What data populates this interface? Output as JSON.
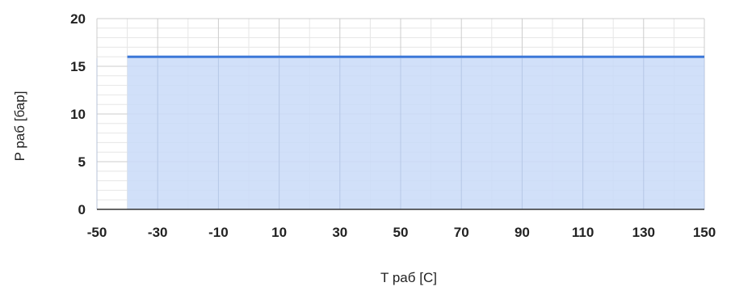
{
  "chart_data": {
    "type": "area",
    "title": "",
    "xlabel": "T раб [C]",
    "ylabel": "P раб [бар]",
    "xlim": [
      -50,
      150
    ],
    "ylim": [
      0,
      20
    ],
    "x_ticks": [
      -50,
      -30,
      -10,
      10,
      30,
      50,
      70,
      90,
      110,
      130,
      150
    ],
    "y_ticks": [
      0,
      5,
      10,
      15,
      20
    ],
    "grid": true,
    "legend": "none",
    "series": [
      {
        "x": [
          -40,
          150
        ],
        "y": [
          16,
          16
        ]
      }
    ],
    "colors": {
      "line": "#3c78d8",
      "fill": "#c9daf8",
      "grid_major": "#cccccc",
      "grid_minor": "#e6e6e6",
      "axis": "#333333"
    }
  }
}
